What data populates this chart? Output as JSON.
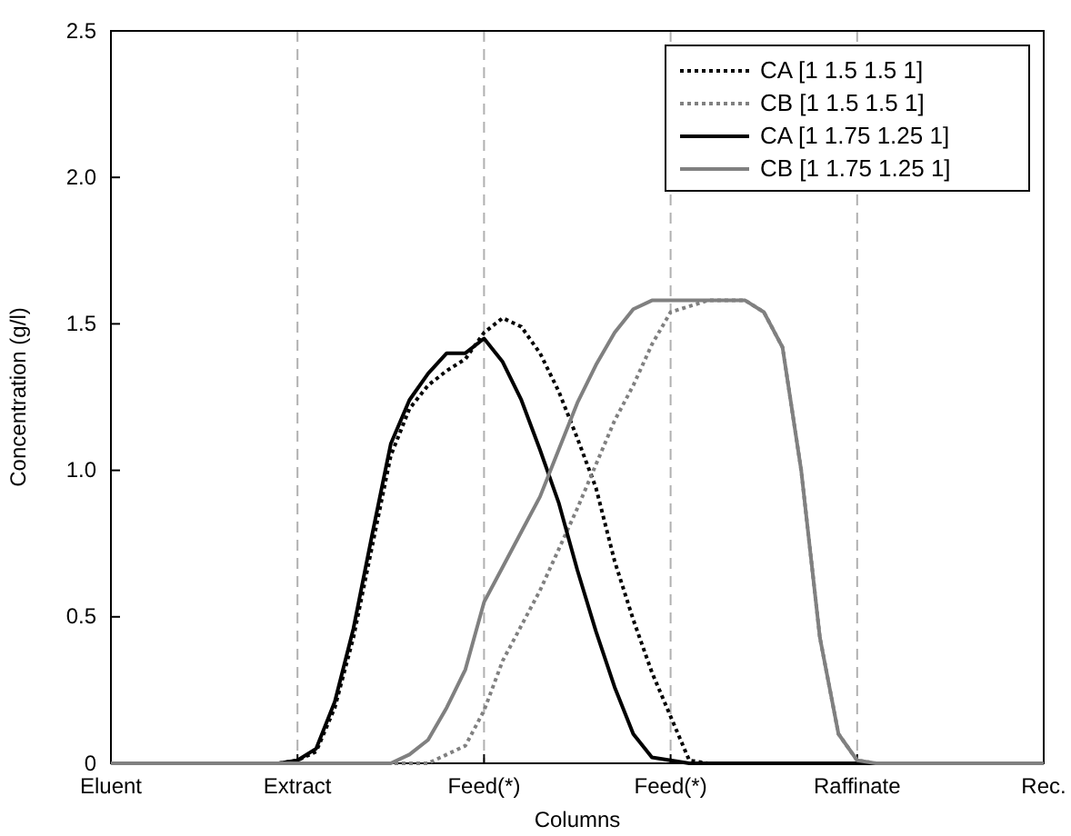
{
  "chart_data": {
    "type": "line",
    "xlabel": "Columns",
    "ylabel": "Concentration (g/l)",
    "categories": [
      "Eluent",
      null,
      null,
      null,
      null,
      null,
      null,
      null,
      null,
      null,
      "Extract",
      null,
      null,
      null,
      null,
      null,
      null,
      null,
      null,
      null,
      "Feed(*)",
      null,
      null,
      null,
      null,
      null,
      null,
      null,
      null,
      null,
      "Feed(*)",
      null,
      null,
      null,
      null,
      null,
      null,
      null,
      null,
      null,
      "Raffinate",
      null,
      null,
      null,
      null,
      null,
      null,
      null,
      null,
      null,
      "Rec."
    ],
    "ylim": [
      0,
      2.5
    ],
    "yticks": [
      0,
      {
        "value": 0.5,
        "label": "0.5"
      },
      {
        "value": 1,
        "label": "1.0"
      },
      {
        "value": 1.5,
        "label": "1.5"
      },
      {
        "value": 2,
        "label": "2.0"
      },
      {
        "value": 2.5,
        "label": "2.5"
      }
    ],
    "grid": "x",
    "legend": "top right",
    "marker": "none",
    "series": [
      {
        "name": "CA [1 1.5 1.5 1]",
        "color": "#000000",
        "line_style": "dotted",
        "values": [
          0,
          0,
          0,
          0,
          0,
          0,
          0,
          0,
          0,
          0,
          0.01,
          0.04,
          0.19,
          0.43,
          0.74,
          1.05,
          1.21,
          1.29,
          1.34,
          1.38,
          1.47,
          1.52,
          1.49,
          1.4,
          1.27,
          1.11,
          0.94,
          0.69,
          0.49,
          0.31,
          0.16,
          0.01,
          0,
          0,
          0,
          0,
          0,
          0,
          0,
          0,
          0,
          0,
          0,
          0,
          0,
          0,
          0,
          0,
          0,
          0,
          0
        ]
      },
      {
        "name": "CB [1 1.5 1.5 1]",
        "color": "#808080",
        "line_style": "dotted",
        "values": [
          0,
          0,
          0,
          0,
          0,
          0,
          0,
          0,
          0,
          0,
          0,
          0,
          0,
          0,
          0,
          0,
          0,
          0,
          0.03,
          0.06,
          0.18,
          0.35,
          0.47,
          0.59,
          0.73,
          0.87,
          1.02,
          1.17,
          1.29,
          1.43,
          1.54,
          1.56,
          1.58,
          1.58,
          1.58,
          1.54,
          1.42,
          1.0,
          0.43,
          0.1,
          0.01,
          0,
          0,
          0,
          0,
          0,
          0,
          0,
          0,
          0,
          0
        ]
      },
      {
        "name": "CA [1 1.75 1.25 1]",
        "color": "#000000",
        "line_style": "solid",
        "values": [
          0,
          0,
          0,
          0,
          0,
          0,
          0,
          0,
          0,
          0,
          0.01,
          0.05,
          0.21,
          0.46,
          0.78,
          1.09,
          1.24,
          1.33,
          1.4,
          1.4,
          1.45,
          1.37,
          1.24,
          1.07,
          0.89,
          0.66,
          0.45,
          0.26,
          0.1,
          0.02,
          0.01,
          0,
          0,
          0,
          0,
          0,
          0,
          0,
          0,
          0,
          0,
          0,
          0,
          0,
          0,
          0,
          0,
          0,
          0,
          0,
          0
        ]
      },
      {
        "name": "CB [1 1.75 1.25 1]",
        "color": "#808080",
        "line_style": "solid",
        "values": [
          0,
          0,
          0,
          0,
          0,
          0,
          0,
          0,
          0,
          0,
          0,
          0,
          0,
          0,
          0,
          0,
          0.03,
          0.08,
          0.19,
          0.32,
          0.55,
          0.67,
          0.79,
          0.91,
          1.07,
          1.23,
          1.36,
          1.47,
          1.55,
          1.58,
          1.58,
          1.58,
          1.58,
          1.58,
          1.58,
          1.54,
          1.42,
          1.0,
          0.43,
          0.1,
          0.01,
          0,
          0,
          0,
          0,
          0,
          0,
          0,
          0,
          0,
          0
        ]
      }
    ]
  }
}
